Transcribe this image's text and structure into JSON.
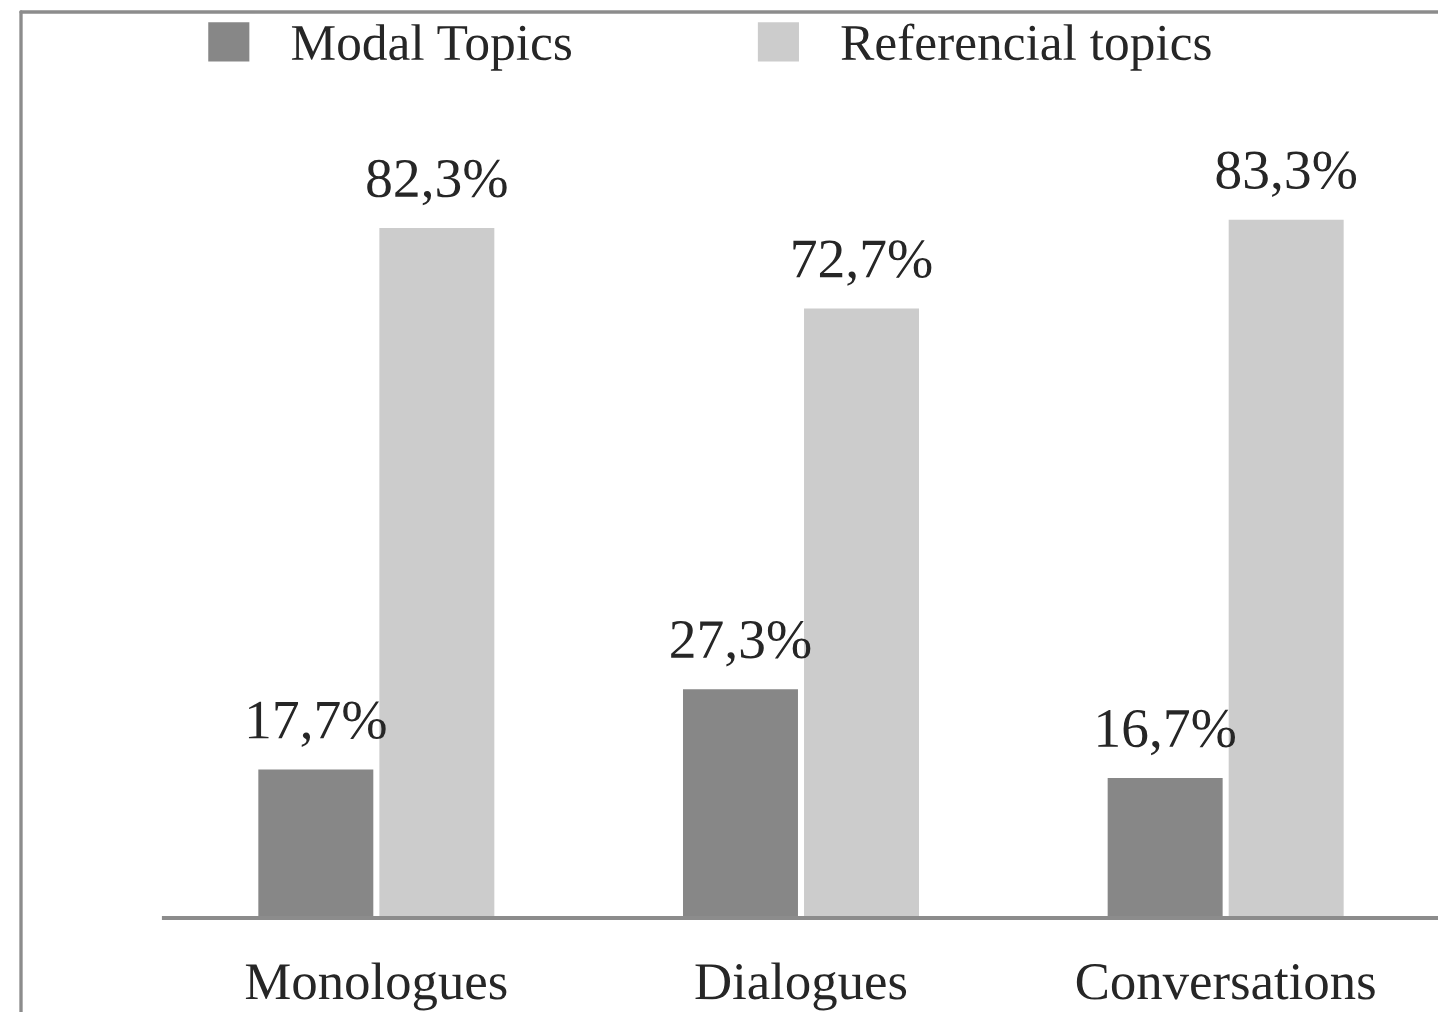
{
  "chart_data": {
    "type": "bar",
    "categories": [
      "Monologues",
      "Dialogues",
      "Conversations"
    ],
    "series": [
      {
        "name": "Modal Topics",
        "color": "#878787",
        "values": [
          17.7,
          27.3,
          16.7
        ],
        "value_labels": [
          "17,7%",
          "27,3%",
          "16,7%"
        ]
      },
      {
        "name": "Referencial topics",
        "color": "#cccccc",
        "values": [
          82.3,
          72.7,
          83.3
        ],
        "value_labels": [
          "82,3%",
          "72,7%",
          "83,3%"
        ]
      }
    ],
    "legend": "top"
  }
}
